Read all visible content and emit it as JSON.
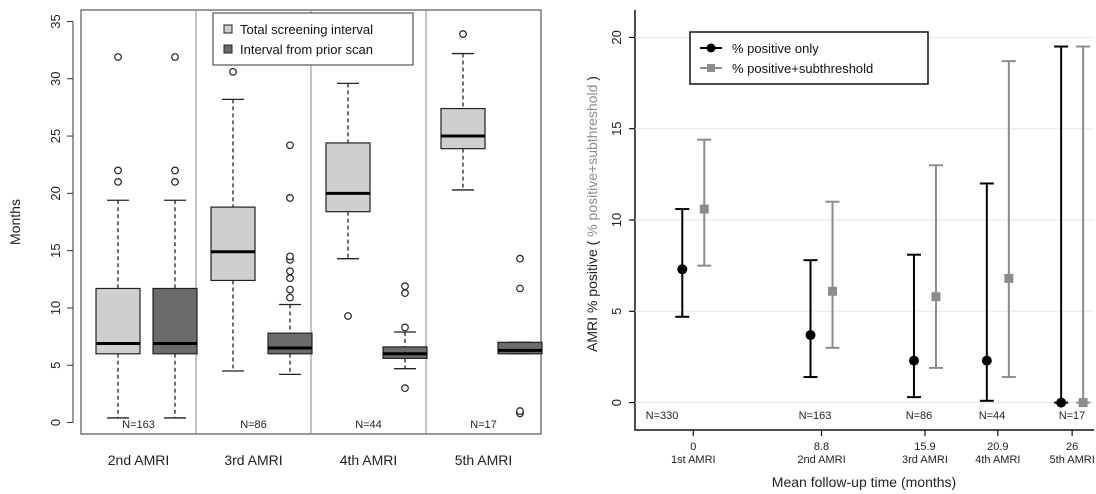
{
  "chart_data": [
    {
      "type": "box",
      "ylabel": "Months",
      "ylim": [
        -1,
        36
      ],
      "yticks": [
        0,
        5,
        10,
        15,
        20,
        25,
        30,
        35
      ],
      "groups": [
        "2nd AMRI",
        "3rd AMRI",
        "4th AMRI",
        "5th AMRI"
      ],
      "n_labels": [
        "N=163",
        "N=86",
        "N=44",
        "N=17"
      ],
      "legend": [
        "Total screening interval",
        "Interval from prior scan"
      ],
      "colors": {
        "total": "#cfcfcf",
        "prior": "#6b6b6b"
      },
      "boxes": [
        {
          "group": 0,
          "series": 0,
          "whisker_low": 0.4,
          "q1": 6.0,
          "median": 6.9,
          "q3": 11.7,
          "whisker_high": 19.4,
          "outliers": [
            21.0,
            22.0,
            31.9
          ]
        },
        {
          "group": 0,
          "series": 1,
          "whisker_low": 0.4,
          "q1": 6.0,
          "median": 6.9,
          "q3": 11.7,
          "whisker_high": 19.4,
          "outliers": [
            21.0,
            22.0,
            31.9
          ]
        },
        {
          "group": 1,
          "series": 0,
          "whisker_low": 4.5,
          "q1": 12.4,
          "median": 14.9,
          "q3": 18.8,
          "whisker_high": 28.2,
          "outliers": [
            30.6
          ]
        },
        {
          "group": 1,
          "series": 1,
          "whisker_low": 4.2,
          "q1": 6.0,
          "median": 6.5,
          "q3": 7.8,
          "whisker_high": 10.3,
          "outliers": [
            10.9,
            11.6,
            12.6,
            13.2,
            14.2,
            14.5,
            19.6,
            24.2
          ]
        },
        {
          "group": 2,
          "series": 0,
          "whisker_low": 14.3,
          "q1": 18.4,
          "median": 20.0,
          "q3": 24.4,
          "whisker_high": 29.6,
          "outliers": [
            9.3
          ]
        },
        {
          "group": 2,
          "series": 1,
          "whisker_low": 4.7,
          "q1": 5.6,
          "median": 6.0,
          "q3": 6.6,
          "whisker_high": 7.9,
          "outliers": [
            3.0,
            8.3,
            11.3,
            11.9
          ]
        },
        {
          "group": 3,
          "series": 0,
          "whisker_low": 20.3,
          "q1": 23.9,
          "median": 25.0,
          "q3": 27.4,
          "whisker_high": 32.2,
          "outliers": [
            33.9
          ]
        },
        {
          "group": 3,
          "series": 1,
          "whisker_low": 6.0,
          "q1": 6.0,
          "median": 6.3,
          "q3": 7.0,
          "whisker_high": 7.0,
          "outliers": [
            0.8,
            1.0,
            11.7,
            14.3
          ]
        }
      ]
    },
    {
      "type": "errorbar",
      "xlabel": "Mean follow-up time (months)",
      "ylabel_main": "AMRI % positive",
      "ylabel_paren_open": "(",
      "ylabel_paren_inner": "% positive+subthreshold",
      "ylabel_paren_close": ")",
      "ylim": [
        -1.5,
        21.5
      ],
      "yticks": [
        0,
        5,
        10,
        15,
        20
      ],
      "xlim": [
        -4,
        27.5
      ],
      "x": [
        0,
        8.8,
        15.9,
        20.9,
        26
      ],
      "x_tick_labels": [
        "0",
        "8.8",
        "15.9",
        "20.9",
        "26"
      ],
      "x_sub_labels": [
        "1st AMRI",
        "2nd AMRI",
        "3rd AMRI",
        "4th AMRI",
        "5th AMRI"
      ],
      "n_labels": [
        "N=330",
        "N=163",
        "N=86",
        "N=44",
        "N=17"
      ],
      "series": [
        {
          "name": "% positive only",
          "color": "#000000",
          "estimate": [
            7.3,
            3.7,
            2.3,
            2.3,
            0.0
          ],
          "lower": [
            4.7,
            1.4,
            0.3,
            0.1,
            0.0
          ],
          "upper": [
            10.6,
            7.8,
            8.1,
            12.0,
            19.5
          ]
        },
        {
          "name": "% positive+subthreshold",
          "color": "#8c8c8c",
          "estimate": [
            10.6,
            6.1,
            5.8,
            6.8,
            0.0
          ],
          "lower": [
            7.5,
            3.0,
            1.9,
            1.4,
            0.0
          ],
          "upper": [
            14.4,
            11.0,
            13.0,
            18.7,
            19.5
          ]
        }
      ]
    }
  ]
}
